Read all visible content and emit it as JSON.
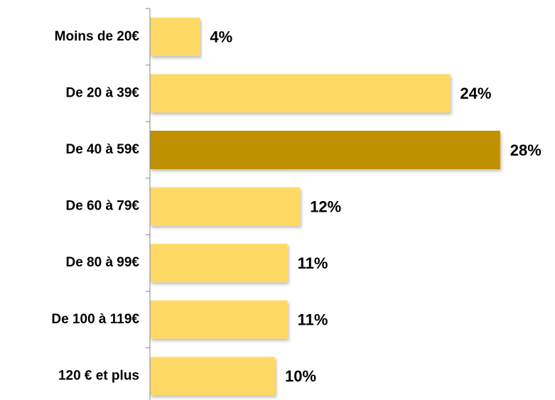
{
  "chart_data": {
    "type": "bar",
    "orientation": "horizontal",
    "categories": [
      "Moins de 20€",
      "De 20 à 39€",
      "De 40 à 59€",
      "De 60 à 79€",
      "De 80 à 99€",
      "De 100 à 119€",
      "120 € et plus"
    ],
    "values": [
      4,
      24,
      28,
      12,
      11,
      11,
      10
    ],
    "value_labels": [
      "4%",
      "24%",
      "28%",
      "12%",
      "11%",
      "11%",
      "10%"
    ],
    "colors": [
      "#FFD966",
      "#FFD966",
      "#BF9000",
      "#FFD966",
      "#FFD966",
      "#FFD966",
      "#FFD966"
    ]
  }
}
